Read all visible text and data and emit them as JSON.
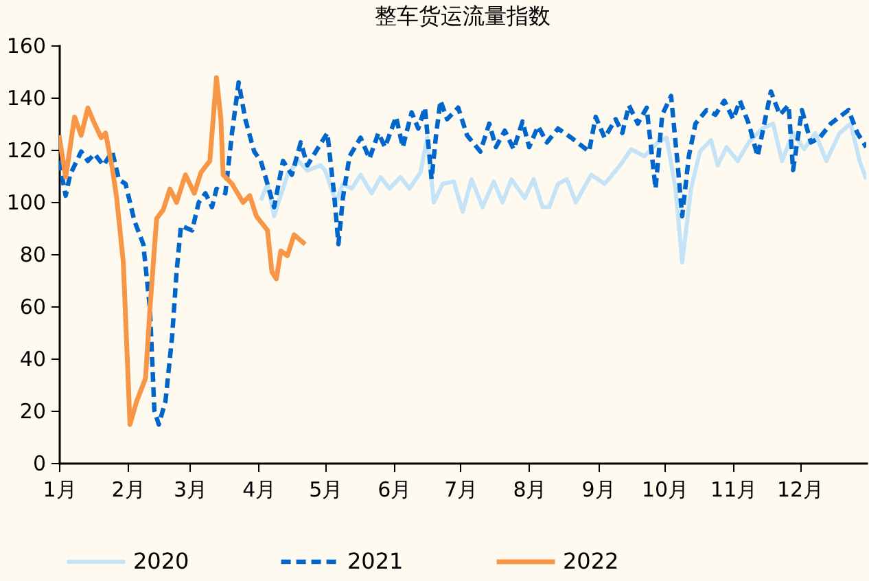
{
  "chart_data": {
    "type": "line",
    "title": "整车货运流量指数",
    "xlim": [
      "--01-01",
      "--12-31"
    ],
    "xticks": [
      {
        "value": "--01-01",
        "label": "1月"
      },
      {
        "value": "--02-01",
        "label": "2月"
      },
      {
        "value": "--03-01",
        "label": "3月"
      },
      {
        "value": "--04-01",
        "label": "4月"
      },
      {
        "value": "--05-01",
        "label": "5月"
      },
      {
        "value": "--06-01",
        "label": "6月"
      },
      {
        "value": "--07-01",
        "label": "7月"
      },
      {
        "value": "--08-01",
        "label": "8月"
      },
      {
        "value": "--09-01",
        "label": "9月"
      },
      {
        "value": "--10-01",
        "label": "10月"
      },
      {
        "value": "--11-01",
        "label": "11月"
      },
      {
        "value": "--12-01",
        "label": "12月"
      }
    ],
    "ylim": [
      0,
      160
    ],
    "yticks": [
      0,
      20,
      40,
      60,
      80,
      100,
      120,
      140,
      160
    ],
    "grid": false,
    "legend": "bottom",
    "marker": "none",
    "series": [
      {
        "name": "2020",
        "color": "#c5e3f6",
        "line_style": "solid",
        "x": [
          "--04-02",
          "--04-05",
          "--04-08",
          "--04-14",
          "--04-19",
          "--04-23",
          "--04-29",
          "--05-01",
          "--05-06",
          "--05-09",
          "--05-13",
          "--05-17",
          "--05-22",
          "--05-26",
          "--05-30",
          "--06-04",
          "--06-08",
          "--06-13",
          "--06-16",
          "--06-19",
          "--06-23",
          "--06-28",
          "--07-02",
          "--07-06",
          "--07-11",
          "--07-16",
          "--07-20",
          "--07-24",
          "--07-30",
          "--08-03",
          "--08-07",
          "--08-10",
          "--08-14",
          "--08-18",
          "--08-22",
          "--08-29",
          "--09-04",
          "--09-11",
          "--09-16",
          "--09-22",
          "--09-28",
          "--10-02",
          "--10-06",
          "--10-09",
          "--10-13",
          "--10-17",
          "--10-22",
          "--10-25",
          "--10-29",
          "--11-03",
          "--11-08",
          "--11-14",
          "--11-19",
          "--11-23",
          "--11-28",
          "--12-03",
          "--12-08",
          "--12-13",
          "--12-19",
          "--12-24",
          "--12-28",
          "--12-31"
        ],
        "values": [
          100.6,
          106.9,
          94.5,
          110.4,
          115.7,
          112,
          114,
          112,
          99.8,
          106.9,
          105.1,
          110.4,
          103.3,
          109.5,
          105.1,
          109.5,
          105.1,
          111.3,
          124.6,
          99.8,
          106.9,
          107.8,
          96.2,
          108.7,
          98,
          107.8,
          99.8,
          108.7,
          101.5,
          108.7,
          98,
          98,
          106.9,
          108.7,
          99.8,
          110.4,
          106.9,
          114,
          120.2,
          117.5,
          122.8,
          124.6,
          105.1,
          76.8,
          105.1,
          119.3,
          123.7,
          114,
          121,
          115.7,
          122.8,
          128.1,
          130,
          115.7,
          126.4,
          120.2,
          126.4,
          115.7,
          126.4,
          130,
          115.7,
          108.7
        ]
      },
      {
        "name": "2021",
        "color": "#0066cc",
        "line_style": "dashed",
        "x": [
          "--01-01",
          "--01-04",
          "--01-06",
          "--01-11",
          "--01-14",
          "--01-17",
          "--01-21",
          "--01-25",
          "--01-28",
          "--01-31",
          "--02-04",
          "--02-08",
          "--02-11",
          "--02-13",
          "--02-15",
          "--02-18",
          "--02-21",
          "--02-23",
          "--02-25",
          "--03-02",
          "--03-05",
          "--03-08",
          "--03-11",
          "--03-13",
          "--03-17",
          "--03-20",
          "--03-23",
          "--03-26",
          "--03-30",
          "--04-02",
          "--04-08",
          "--04-12",
          "--04-16",
          "--04-20",
          "--04-23",
          "--04-28",
          "--05-02",
          "--05-05",
          "--05-07",
          "--05-09",
          "--05-12",
          "--05-17",
          "--05-21",
          "--05-25",
          "--05-28",
          "--06-02",
          "--06-05",
          "--06-09",
          "--06-12",
          "--06-15",
          "--06-18",
          "--06-20",
          "--06-22",
          "--06-25",
          "--06-30",
          "--07-04",
          "--07-10",
          "--07-14",
          "--07-17",
          "--07-21",
          "--07-25",
          "--07-29",
          "--08-01",
          "--08-05",
          "--08-09",
          "--08-14",
          "--08-20",
          "--08-28",
          "--08-31",
          "--09-04",
          "--09-09",
          "--09-12",
          "--09-15",
          "--09-19",
          "--09-23",
          "--09-27",
          "--09-30",
          "--10-04",
          "--10-07",
          "--10-09",
          "--10-12",
          "--10-15",
          "--10-20",
          "--10-24",
          "--10-28",
          "--11-01",
          "--11-04",
          "--11-08",
          "--11-12",
          "--11-18",
          "--11-22",
          "--11-26",
          "--11-28",
          "--12-02",
          "--12-06",
          "--12-10",
          "--12-15",
          "--12-23",
          "--12-27",
          "--12-31"
        ],
        "values": [
          115.7,
          102.4,
          110.4,
          119.3,
          115.7,
          118.4,
          114,
          119.3,
          108.6,
          106.9,
          92.7,
          83.8,
          59,
          20,
          14.7,
          23.6,
          48.4,
          73.2,
          90.9,
          89.1,
          99.8,
          103.3,
          98,
          105,
          103.3,
          126.4,
          145.8,
          131.7,
          119.3,
          115.7,
          98,
          115.7,
          110.4,
          122.8,
          114,
          121,
          126.4,
          103.3,
          83.8,
          101.5,
          117.5,
          124.6,
          116.6,
          126.4,
          121,
          132.6,
          121,
          134.3,
          128.1,
          136.1,
          108.7,
          125.5,
          138.8,
          131.7,
          136.1,
          125.5,
          119.3,
          130,
          121,
          127.3,
          120.2,
          130.8,
          121,
          129,
          122.8,
          128.1,
          124.6,
          119.3,
          132.6,
          124.6,
          131.7,
          126.4,
          137,
          130,
          136.1,
          105.1,
          133.4,
          140.6,
          114,
          94.5,
          117.5,
          130,
          135.2,
          133.4,
          138.8,
          131.7,
          138.8,
          130,
          117.5,
          142.3,
          133.4,
          137,
          112.2,
          135.2,
          122.8,
          124.6,
          130,
          135.2,
          126.4,
          121
        ]
      },
      {
        "name": "2022",
        "color": "#f79646",
        "line_style": "solid",
        "x": [
          "--01-01",
          "--01-04",
          "--01-08",
          "--01-11",
          "--01-14",
          "--01-17",
          "--01-20",
          "--01-22",
          "--01-25",
          "--01-27",
          "--01-30",
          "--02-02",
          "--02-05",
          "--02-09",
          "--02-11",
          "--02-14",
          "--02-17",
          "--02-20",
          "--02-23",
          "--02-27",
          "--03-03",
          "--03-06",
          "--03-10",
          "--03-13",
          "--03-15",
          "--03-16",
          "--03-20",
          "--03-25",
          "--03-28",
          "--03-31",
          "--04-05",
          "--04-07",
          "--04-09",
          "--04-11",
          "--04-14",
          "--04-17",
          "--04-22"
        ],
        "values": [
          125.5,
          109.5,
          132.5,
          125.5,
          136,
          130,
          124.6,
          126.4,
          113,
          101.5,
          76.7,
          14.7,
          23.6,
          32.4,
          59,
          93.6,
          97,
          105,
          99.8,
          110.4,
          103.3,
          111.3,
          115.7,
          147.6,
          131.7,
          110.4,
          106.9,
          99.8,
          102.4,
          94.5,
          89.1,
          73.2,
          70.5,
          81.2,
          79.4,
          87.4,
          83.8
        ]
      }
    ]
  }
}
